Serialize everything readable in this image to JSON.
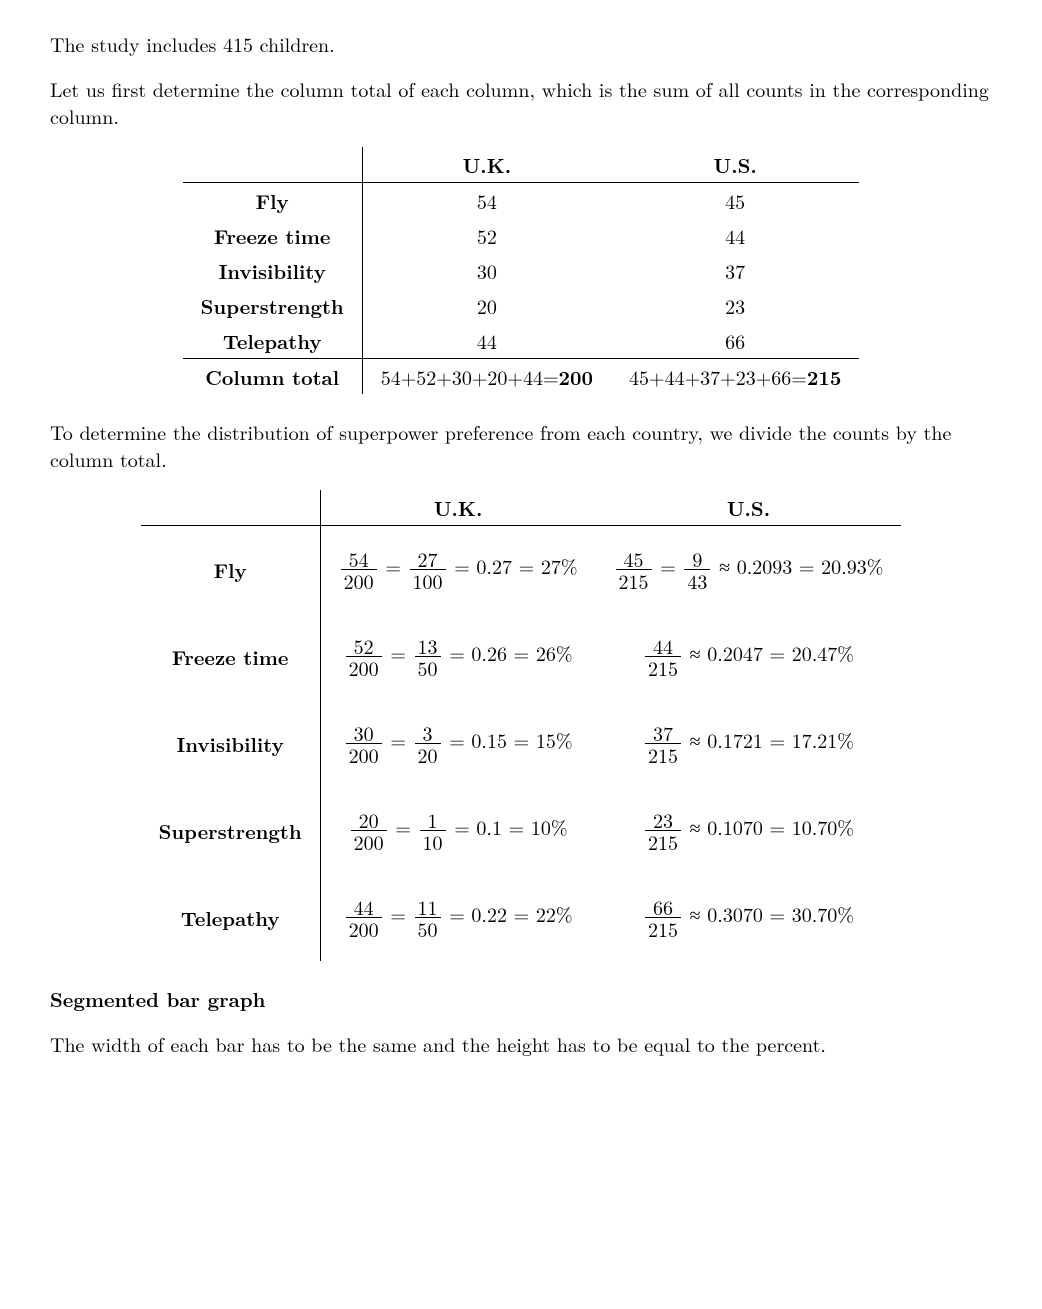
{
  "intro": "The study includes 415 children.",
  "para1": "Let us first determine the column total of each column, which is the sum of all counts in the corresponding column.",
  "para2": "To determine the distribution of superpower preference from each country, we divide the counts by the column total.",
  "section_title": "Segmented bar graph",
  "para3": "The width of each bar has to be the same and the height has to be equal to the percent.",
  "table1": {
    "col_headers": [
      "U.K.",
      "U.S."
    ],
    "row_headers": [
      "Fly",
      "Freeze time",
      "Invisibility",
      "Superstrength",
      "Telepathy"
    ],
    "uk": [
      "54",
      "52",
      "30",
      "20",
      "44"
    ],
    "us": [
      "45",
      "44",
      "37",
      "23",
      "66"
    ],
    "total_label": "Column total",
    "uk_total": "54+52+30+20+44=",
    "uk_total_bold": "200",
    "us_total": "45+44+37+23+66=",
    "us_total_bold": "215"
  },
  "table2": {
    "col_headers": [
      "U.K.",
      "U.S."
    ],
    "row_headers": [
      "Fly",
      "Freeze time",
      "Invisibility",
      "Superstrength",
      "Telepathy"
    ],
    "uk": [
      {
        "f1n": "54",
        "f1d": "200",
        "f2n": "27",
        "f2d": "100",
        "eq": " = 0.27 = 27%"
      },
      {
        "f1n": "52",
        "f1d": "200",
        "f2n": "13",
        "f2d": "50",
        "eq": " = 0.26 = 26%"
      },
      {
        "f1n": "30",
        "f1d": "200",
        "f2n": "3",
        "f2d": "20",
        "eq": " = 0.15 = 15%"
      },
      {
        "f1n": "20",
        "f1d": "200",
        "f2n": "1",
        "f2d": "10",
        "eq": " = 0.1 = 10%"
      },
      {
        "f1n": "44",
        "f1d": "200",
        "f2n": "11",
        "f2d": "50",
        "eq": " = 0.22 = 22%"
      }
    ],
    "us": [
      {
        "f1n": "45",
        "f1d": "215",
        "f2n": "9",
        "f2d": "43",
        "eq": " ≈ 0.2093 = 20.93%"
      },
      {
        "f1n": "44",
        "f1d": "215",
        "f2n": null,
        "f2d": null,
        "eq": " ≈ 0.2047 = 20.47%"
      },
      {
        "f1n": "37",
        "f1d": "215",
        "f2n": null,
        "f2d": null,
        "eq": " ≈ 0.1721 = 17.21%"
      },
      {
        "f1n": "23",
        "f1d": "215",
        "f2n": null,
        "f2d": null,
        "eq": " ≈ 0.1070 = 10.70%"
      },
      {
        "f1n": "66",
        "f1d": "215",
        "f2n": null,
        "f2d": null,
        "eq": " ≈ 0.3070 = 30.70%"
      }
    ]
  }
}
